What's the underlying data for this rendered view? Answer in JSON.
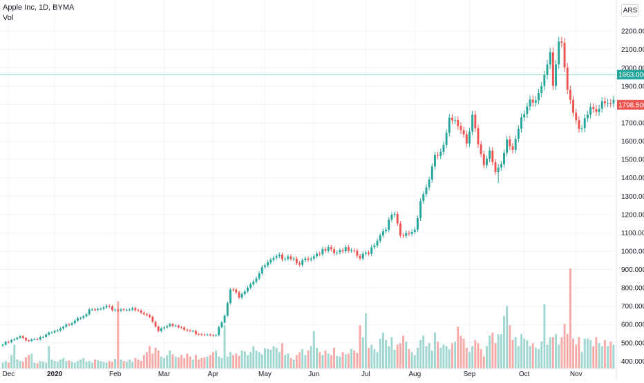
{
  "chart_data": {
    "type": "candlestick",
    "title": "Apple Inc, 1D, BYMA",
    "volume_label": "Vol",
    "currency": "ARS",
    "y_ticks": [
      400,
      500,
      600,
      700,
      800,
      900,
      1000,
      1100,
      1200,
      1300,
      1400,
      1500,
      1600,
      1700,
      1800,
      1900,
      2000,
      2100,
      2200
    ],
    "y_tick_labels": [
      "400.000",
      "500.000",
      "600.000",
      "700.000",
      "800.000",
      "900.000",
      "1000.000",
      "1100.000",
      "1200.000",
      "1300.000",
      "1400.000",
      "1500.000",
      "1600.000",
      "1700.000",
      "1800.000",
      "1900.000",
      "2000.000",
      "2100.000",
      "2200.000"
    ],
    "ylim": [
      360,
      2370
    ],
    "x_labels": [
      "Dec",
      "2020",
      "Feb",
      "Mar",
      "Apr",
      "May",
      "Jun",
      "Jul",
      "Aug",
      "Sep",
      "Oct",
      "Nov"
    ],
    "x_label_index": [
      2,
      18,
      39,
      56,
      73,
      91,
      108,
      126,
      143,
      162,
      181,
      199
    ],
    "price_labels": [
      {
        "value": 1963,
        "text": "1963.000",
        "color": "#26a69a"
      },
      {
        "value": 1798.5,
        "text": "1798.500",
        "color": "#ef5350"
      }
    ],
    "horizontal_line": 1963,
    "anchors": [
      [
        0,
        490
      ],
      [
        6,
        530
      ],
      [
        9,
        515
      ],
      [
        14,
        535
      ],
      [
        20,
        570
      ],
      [
        26,
        640
      ],
      [
        30,
        670
      ],
      [
        36,
        690
      ],
      [
        40,
        680
      ],
      [
        43,
        690
      ],
      [
        47,
        670
      ],
      [
        51,
        640
      ],
      [
        54,
        570
      ],
      [
        58,
        610
      ],
      [
        62,
        575
      ],
      [
        67,
        555
      ],
      [
        70,
        550
      ],
      [
        74,
        550
      ],
      [
        77,
        640
      ],
      [
        79,
        790
      ],
      [
        82,
        760
      ],
      [
        85,
        810
      ],
      [
        88,
        860
      ],
      [
        91,
        920
      ],
      [
        95,
        960
      ],
      [
        99,
        980
      ],
      [
        103,
        940
      ],
      [
        107,
        950
      ],
      [
        110,
        980
      ],
      [
        113,
        1040
      ],
      [
        115,
        1000
      ],
      [
        118,
        1010
      ],
      [
        122,
        985
      ],
      [
        124,
        960
      ],
      [
        127,
        1000
      ],
      [
        131,
        1090
      ],
      [
        134,
        1160
      ],
      [
        136,
        1200
      ],
      [
        138,
        1070
      ],
      [
        140,
        1090
      ],
      [
        143,
        1120
      ],
      [
        145,
        1280
      ],
      [
        147,
        1350
      ],
      [
        150,
        1500
      ],
      [
        153,
        1560
      ],
      [
        155,
        1700
      ],
      [
        157,
        1730
      ],
      [
        159,
        1680
      ],
      [
        161,
        1600
      ],
      [
        163,
        1760
      ],
      [
        165,
        1570
      ],
      [
        167,
        1450
      ],
      [
        169,
        1530
      ],
      [
        171,
        1440
      ],
      [
        173,
        1480
      ],
      [
        175,
        1620
      ],
      [
        177,
        1570
      ],
      [
        180,
        1700
      ],
      [
        183,
        1800
      ],
      [
        185,
        1820
      ],
      [
        187,
        1910
      ],
      [
        189,
        2050
      ],
      [
        190,
        2100
      ],
      [
        191,
        1930
      ],
      [
        193,
        2140
      ],
      [
        194,
        2100
      ],
      [
        195,
        1980
      ],
      [
        196,
        1870
      ],
      [
        197,
        1800
      ],
      [
        199,
        1700
      ],
      [
        200,
        1650
      ],
      [
        202,
        1740
      ],
      [
        204,
        1790
      ],
      [
        207,
        1780
      ],
      [
        210,
        1800
      ],
      [
        213,
        1798.5
      ]
    ],
    "spikes": [
      [
        172,
        1370
      ]
    ],
    "volumes": [
      8,
      10,
      8,
      18,
      32,
      12,
      10,
      9,
      15,
      18,
      20,
      8,
      7,
      10,
      9,
      8,
      30,
      12,
      10,
      9,
      12,
      14,
      10,
      11,
      9,
      8,
      10,
      12,
      14,
      9,
      10,
      8,
      12,
      11,
      10,
      9,
      8,
      10,
      9,
      13,
      90,
      12,
      10,
      9,
      12,
      9,
      14,
      12,
      10,
      18,
      22,
      30,
      20,
      28,
      24,
      16,
      14,
      18,
      24,
      19,
      16,
      15,
      18,
      14,
      20,
      16,
      12,
      18,
      12,
      14,
      15,
      16,
      18,
      22,
      24,
      16,
      14,
      58,
      16,
      22,
      18,
      20,
      17,
      24,
      23,
      18,
      22,
      30,
      24,
      22,
      19,
      27,
      26,
      25,
      30,
      28,
      22,
      34,
      18,
      20,
      14,
      12,
      18,
      22,
      26,
      18,
      24,
      30,
      50,
      28,
      22,
      18,
      24,
      20,
      18,
      28,
      17,
      16,
      22,
      19,
      20,
      26,
      24,
      21,
      58,
      42,
      74,
      28,
      32,
      26,
      22,
      40,
      48,
      38,
      30,
      42,
      25,
      32,
      34,
      44,
      36,
      26,
      22,
      18,
      28,
      38,
      44,
      30,
      34,
      24,
      48,
      36,
      28,
      32,
      30,
      26,
      34,
      36,
      56,
      44,
      40,
      28,
      22,
      30,
      38,
      34,
      26,
      16,
      30,
      44,
      48,
      34,
      46,
      46,
      70,
      84,
      58,
      38,
      42,
      30,
      46,
      40,
      38,
      30,
      34,
      28,
      26,
      36,
      86,
      32,
      42,
      42,
      46,
      32,
      42,
      60,
      46,
      134,
      40,
      32,
      42,
      22,
      40,
      40,
      38,
      30,
      42,
      34,
      30,
      38,
      30,
      36,
      32
    ],
    "vol_max": 134
  }
}
